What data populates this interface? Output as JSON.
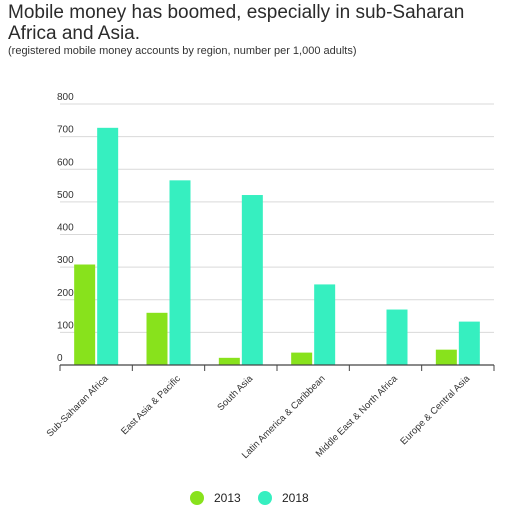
{
  "chart_data": {
    "type": "bar",
    "title": "Mobile money has boomed, especially in sub-Saharan Africa and Asia.",
    "subtitle": "(registered mobile money accounts by region, number per 1,000 adults)",
    "xlabel": "",
    "ylabel": "",
    "ylim": [
      0,
      800
    ],
    "yticks": [
      0,
      100,
      200,
      300,
      400,
      500,
      600,
      700,
      800
    ],
    "grid": true,
    "legend_position": "bottom",
    "categories": [
      "Sub-Saharan Africa",
      "East Asia & Pacific",
      "South Asia",
      "Latin America & Caribbean",
      "Middle East & North Africa",
      "Europe & Central Asia"
    ],
    "series": [
      {
        "name": "2013",
        "color": "#88e21c",
        "values": [
          308,
          160,
          22,
          38,
          0,
          47
        ]
      },
      {
        "name": "2018",
        "color": "#36efc0",
        "values": [
          727,
          566,
          521,
          247,
          170,
          133
        ]
      }
    ]
  }
}
